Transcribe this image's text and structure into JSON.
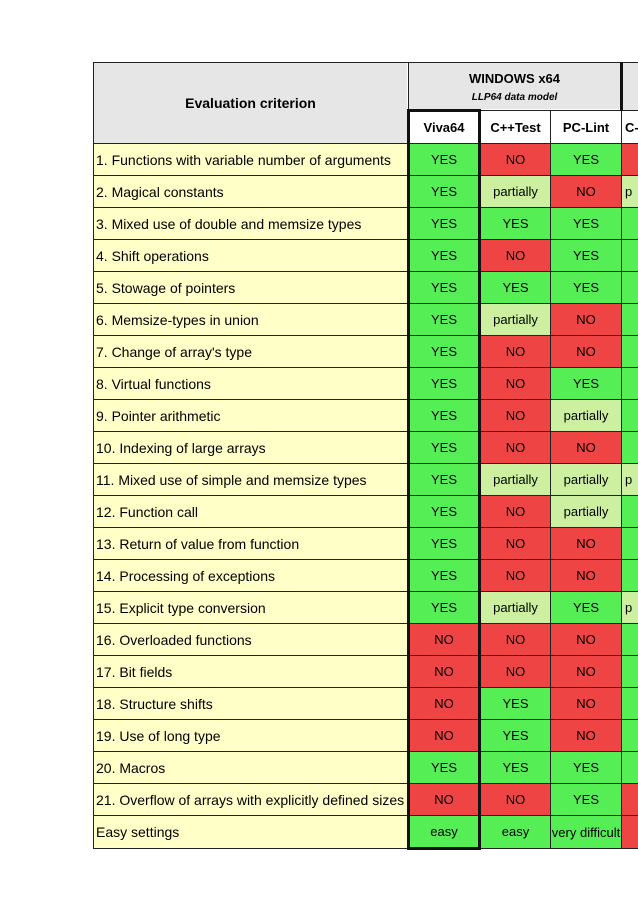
{
  "header": {
    "criterion_label": "Evaluation criterion",
    "group_title": "WINDOWS x64",
    "group_subtitle": "LLP64 data model",
    "tools": [
      "Viva64",
      "C++Test",
      "PC-Lint",
      "C-"
    ]
  },
  "rows": [
    {
      "criterion": "1. Functions with variable number of arguments",
      "values": [
        "YES",
        "NO",
        "YES",
        ""
      ]
    },
    {
      "criterion": "2. Magical constants",
      "values": [
        "YES",
        "partially",
        "NO",
        "p"
      ]
    },
    {
      "criterion": "3. Mixed use of double and memsize types",
      "values": [
        "YES",
        "YES",
        "YES",
        ""
      ]
    },
    {
      "criterion": "4. Shift operations",
      "values": [
        "YES",
        "NO",
        "YES",
        ""
      ]
    },
    {
      "criterion": "5. Stowage of pointers",
      "values": [
        "YES",
        "YES",
        "YES",
        ""
      ]
    },
    {
      "criterion": "6. Memsize-types in union",
      "values": [
        "YES",
        "partially",
        "NO",
        ""
      ]
    },
    {
      "criterion": "7. Change of array's type",
      "values": [
        "YES",
        "NO",
        "NO",
        ""
      ]
    },
    {
      "criterion": "8. Virtual functions",
      "values": [
        "YES",
        "NO",
        "YES",
        ""
      ]
    },
    {
      "criterion": "9. Pointer arithmetic",
      "values": [
        "YES",
        "NO",
        "partially",
        ""
      ]
    },
    {
      "criterion": "10. Indexing of large arrays",
      "values": [
        "YES",
        "NO",
        "NO",
        ""
      ]
    },
    {
      "criterion": "11. Mixed use of simple and memsize types",
      "values": [
        "YES",
        "partially",
        "partially",
        "p"
      ]
    },
    {
      "criterion": "12. Function call",
      "values": [
        "YES",
        "NO",
        "partially",
        ""
      ]
    },
    {
      "criterion": "13. Return of value from function",
      "values": [
        "YES",
        "NO",
        "NO",
        ""
      ]
    },
    {
      "criterion": "14. Processing of exceptions",
      "values": [
        "YES",
        "NO",
        "NO",
        ""
      ]
    },
    {
      "criterion": "15. Explicit type conversion",
      "values": [
        "YES",
        "partially",
        "YES",
        "p"
      ]
    },
    {
      "criterion": "16. Overloaded functions",
      "values": [
        "NO",
        "NO",
        "NO",
        ""
      ]
    },
    {
      "criterion": "17. Bit fields",
      "values": [
        "NO",
        "NO",
        "NO",
        ""
      ]
    },
    {
      "criterion": "18. Structure shifts",
      "values": [
        "NO",
        "YES",
        "NO",
        ""
      ]
    },
    {
      "criterion": "19. Use of long type",
      "values": [
        "NO",
        "YES",
        "NO",
        ""
      ]
    },
    {
      "criterion": "20. Macros",
      "values": [
        "YES",
        "YES",
        "YES",
        ""
      ]
    },
    {
      "criterion": "21. Overflow of arrays with explicitly defined sizes",
      "values": [
        "NO",
        "NO",
        "YES",
        ""
      ]
    },
    {
      "criterion": "Easy settings",
      "values": [
        "easy",
        "easy",
        "very difficult",
        ""
      ]
    }
  ],
  "colors": {
    "yes": "#55ee55",
    "no": "#ee4444",
    "partially": "#ccf0a0",
    "criterion_bg": "#ffffc8",
    "header_bg": "#e6e6e6"
  }
}
